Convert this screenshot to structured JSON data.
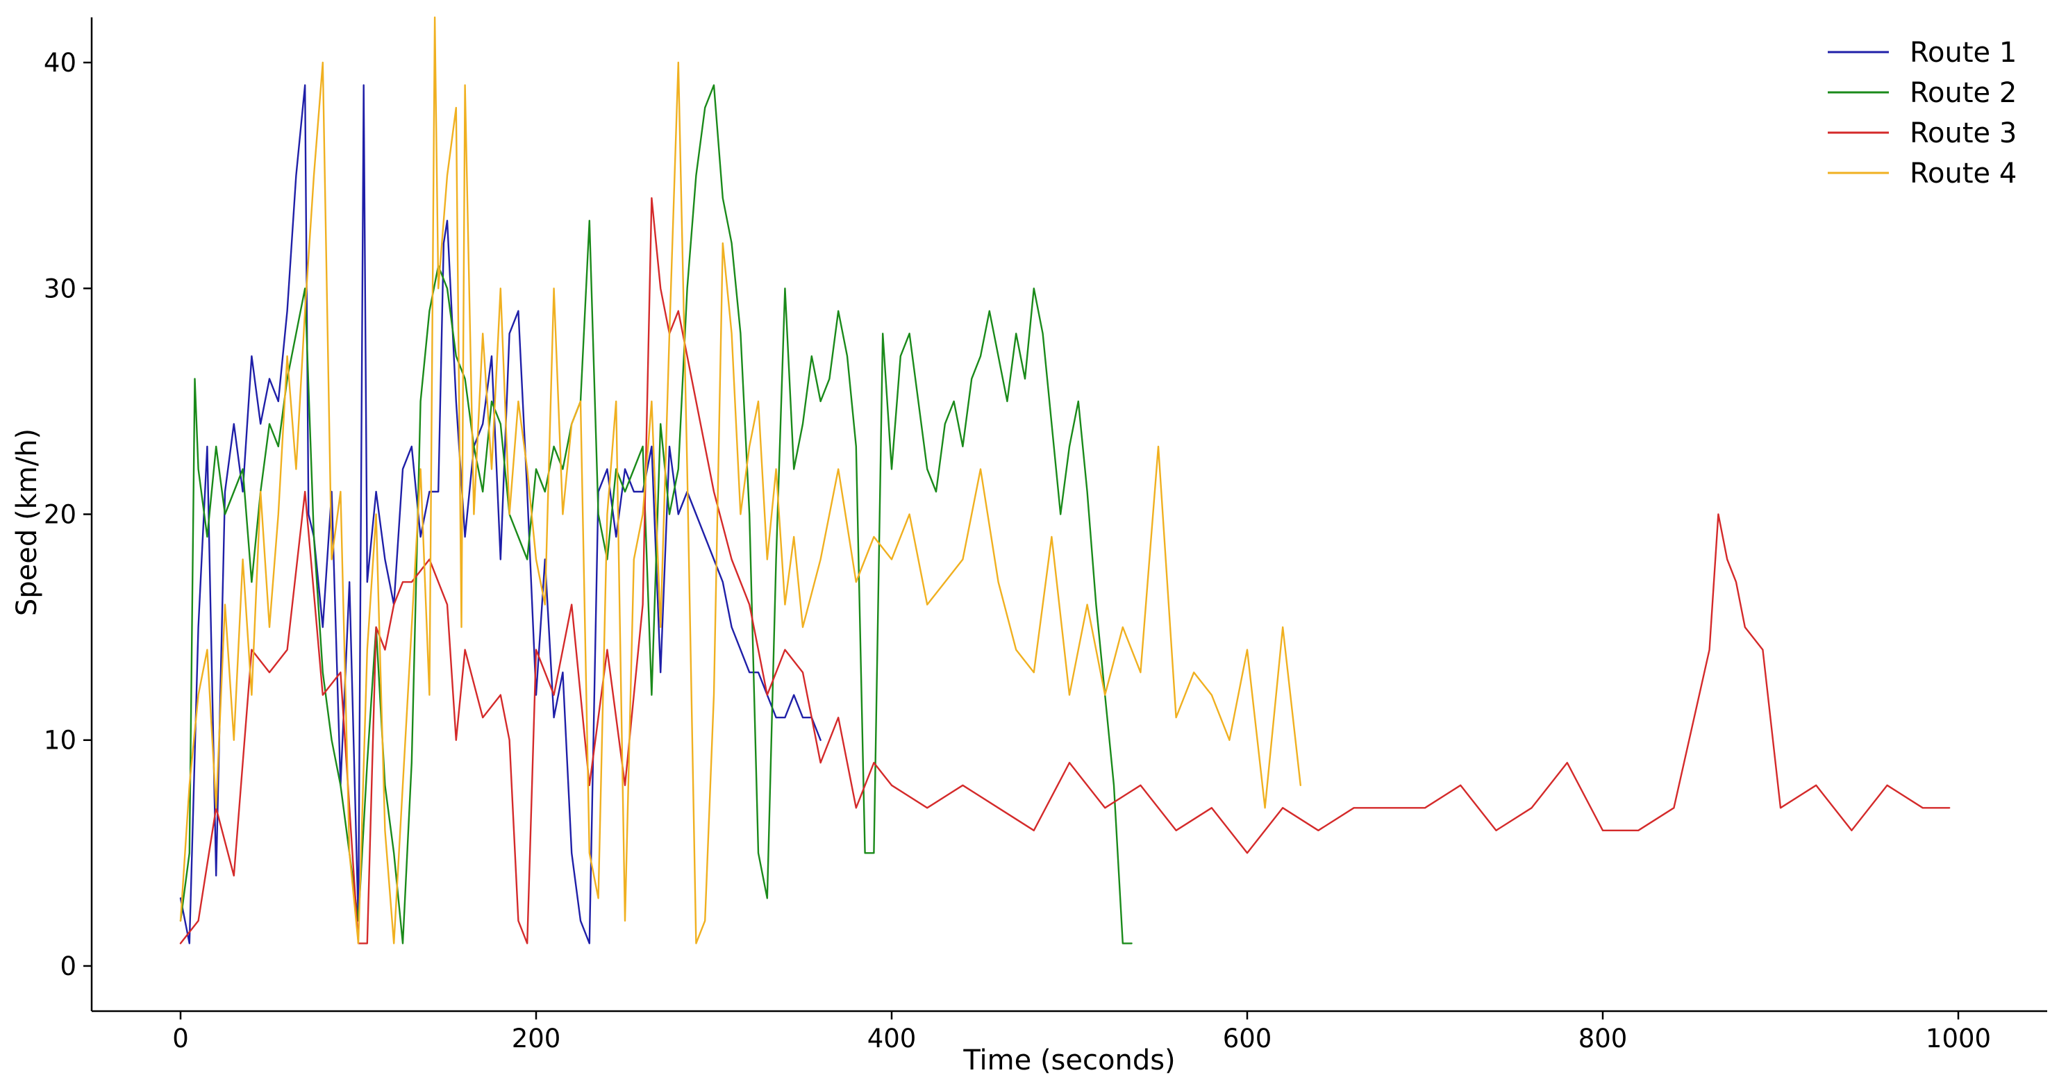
{
  "chart_data": {
    "type": "line",
    "title": "",
    "xlabel": "Time (seconds)",
    "ylabel": "Speed (km/h)",
    "xlim": [
      -50,
      1050
    ],
    "ylim": [
      -2,
      42
    ],
    "xticks": [
      0,
      200,
      400,
      600,
      800,
      1000
    ],
    "yticks": [
      0,
      10,
      20,
      30,
      40
    ],
    "grid": false,
    "legend_position": "top-right",
    "series": [
      {
        "name": "Route 1",
        "color": "#1f1fa8",
        "x": [
          0,
          5,
          10,
          15,
          20,
          25,
          30,
          35,
          40,
          45,
          50,
          55,
          60,
          65,
          70,
          72,
          75,
          80,
          85,
          90,
          95,
          100,
          103,
          105,
          110,
          115,
          120,
          125,
          130,
          135,
          140,
          145,
          148,
          150,
          155,
          160,
          165,
          170,
          175,
          180,
          185,
          190,
          195,
          200,
          205,
          210,
          215,
          220,
          225,
          230,
          235,
          240,
          245,
          250,
          255,
          260,
          265,
          270,
          275,
          280,
          285,
          290,
          295,
          300,
          305,
          310,
          315,
          320,
          325,
          330,
          335,
          340,
          345,
          350,
          355,
          360
        ],
        "y": [
          3,
          1,
          15,
          23,
          4,
          21,
          24,
          21,
          27,
          24,
          26,
          25,
          29,
          35,
          39,
          20,
          19,
          15,
          21,
          8,
          17,
          2,
          39,
          17,
          21,
          18,
          16,
          22,
          23,
          19,
          21,
          21,
          32,
          33,
          25,
          19,
          23,
          24,
          27,
          18,
          28,
          29,
          21,
          12,
          18,
          11,
          13,
          5,
          2,
          1,
          21,
          22,
          19,
          22,
          21,
          21,
          23,
          13,
          23,
          20,
          21,
          20,
          19,
          18,
          17,
          15,
          14,
          13,
          13,
          12,
          11,
          11,
          12,
          11,
          11,
          10
        ]
      },
      {
        "name": "Route 2",
        "color": "#1a8a1a",
        "x": [
          0,
          5,
          8,
          10,
          15,
          20,
          25,
          30,
          35,
          40,
          45,
          50,
          55,
          60,
          65,
          70,
          75,
          80,
          85,
          90,
          95,
          100,
          105,
          110,
          115,
          120,
          125,
          130,
          135,
          140,
          145,
          150,
          155,
          160,
          165,
          170,
          175,
          180,
          185,
          190,
          195,
          200,
          205,
          210,
          215,
          220,
          225,
          230,
          235,
          240,
          245,
          250,
          255,
          260,
          265,
          270,
          275,
          280,
          285,
          290,
          295,
          300,
          305,
          310,
          315,
          320,
          325,
          330,
          335,
          340,
          345,
          350,
          355,
          360,
          365,
          370,
          375,
          380,
          385,
          390,
          395,
          400,
          405,
          410,
          415,
          420,
          425,
          430,
          435,
          440,
          445,
          450,
          455,
          460,
          465,
          470,
          475,
          480,
          485,
          490,
          495,
          500,
          505,
          510,
          515,
          520,
          525,
          530,
          535
        ],
        "y": [
          2,
          5,
          26,
          22,
          19,
          23,
          20,
          21,
          22,
          17,
          21,
          24,
          23,
          26,
          28,
          30,
          19,
          13,
          10,
          8,
          5,
          2,
          9,
          15,
          8,
          5,
          1,
          9,
          25,
          29,
          31,
          30,
          27,
          26,
          23,
          21,
          25,
          24,
          20,
          19,
          18,
          22,
          21,
          23,
          22,
          24,
          25,
          33,
          20,
          18,
          22,
          21,
          22,
          23,
          12,
          24,
          20,
          22,
          30,
          35,
          38,
          39,
          34,
          32,
          28,
          20,
          5,
          3,
          18,
          30,
          22,
          24,
          27,
          25,
          26,
          29,
          27,
          23,
          5,
          5,
          28,
          22,
          27,
          28,
          25,
          22,
          21,
          24,
          25,
          23,
          26,
          27,
          29,
          27,
          25,
          28,
          26,
          30,
          28,
          24,
          20,
          23,
          25,
          21,
          16,
          12,
          8,
          1,
          1
        ]
      },
      {
        "name": "Route 3",
        "color": "#d42a2a",
        "x": [
          0,
          10,
          20,
          30,
          40,
          50,
          60,
          70,
          80,
          90,
          100,
          105,
          110,
          115,
          120,
          125,
          130,
          140,
          150,
          155,
          160,
          170,
          180,
          185,
          190,
          195,
          200,
          210,
          220,
          230,
          240,
          250,
          260,
          265,
          270,
          275,
          280,
          290,
          300,
          310,
          320,
          330,
          340,
          350,
          360,
          370,
          380,
          390,
          400,
          420,
          440,
          460,
          480,
          500,
          520,
          540,
          560,
          580,
          600,
          620,
          640,
          660,
          680,
          700,
          720,
          740,
          760,
          780,
          800,
          820,
          840,
          860,
          865,
          870,
          875,
          880,
          890,
          900,
          920,
          940,
          960,
          980,
          995
        ],
        "y": [
          1,
          2,
          7,
          4,
          14,
          13,
          14,
          21,
          12,
          13,
          1,
          1,
          15,
          14,
          16,
          17,
          17,
          18,
          16,
          10,
          14,
          11,
          12,
          10,
          2,
          1,
          14,
          12,
          16,
          8,
          14,
          8,
          16,
          34,
          30,
          28,
          29,
          25,
          21,
          18,
          16,
          12,
          14,
          13,
          9,
          11,
          7,
          9,
          8,
          7,
          8,
          7,
          6,
          9,
          7,
          8,
          6,
          7,
          5,
          7,
          6,
          7,
          7,
          7,
          8,
          6,
          7,
          9,
          6,
          6,
          7,
          14,
          20,
          18,
          17,
          15,
          14,
          7,
          8,
          6,
          8,
          7,
          7
        ]
      },
      {
        "name": "Route 4",
        "color": "#f0b020",
        "x": [
          0,
          5,
          10,
          15,
          20,
          25,
          30,
          35,
          40,
          45,
          50,
          55,
          60,
          65,
          70,
          75,
          80,
          85,
          90,
          95,
          100,
          105,
          110,
          115,
          120,
          125,
          130,
          135,
          140,
          143,
          145,
          150,
          155,
          158,
          160,
          165,
          170,
          175,
          180,
          185,
          190,
          195,
          200,
          205,
          210,
          215,
          220,
          225,
          230,
          235,
          240,
          245,
          250,
          255,
          260,
          265,
          270,
          275,
          280,
          285,
          290,
          295,
          300,
          305,
          310,
          315,
          320,
          325,
          330,
          335,
          340,
          345,
          350,
          360,
          370,
          380,
          390,
          400,
          410,
          420,
          430,
          440,
          450,
          460,
          470,
          480,
          490,
          500,
          510,
          520,
          530,
          540,
          550,
          560,
          570,
          580,
          590,
          600,
          610,
          620,
          630
        ],
        "y": [
          2,
          8,
          12,
          14,
          7,
          16,
          10,
          18,
          12,
          21,
          15,
          20,
          27,
          22,
          29,
          35,
          40,
          18,
          21,
          5,
          1,
          14,
          20,
          6,
          1,
          8,
          15,
          22,
          12,
          42,
          30,
          35,
          38,
          15,
          39,
          20,
          28,
          22,
          30,
          20,
          25,
          22,
          18,
          16,
          30,
          20,
          24,
          25,
          5,
          3,
          20,
          25,
          2,
          18,
          20,
          25,
          15,
          28,
          40,
          22,
          1,
          2,
          12,
          32,
          28,
          20,
          23,
          25,
          18,
          22,
          16,
          19,
          15,
          18,
          22,
          17,
          19,
          18,
          20,
          16,
          17,
          18,
          22,
          17,
          14,
          13,
          19,
          12,
          16,
          12,
          15,
          13,
          23,
          11,
          13,
          12,
          10,
          14,
          7,
          15,
          8
        ]
      }
    ]
  }
}
